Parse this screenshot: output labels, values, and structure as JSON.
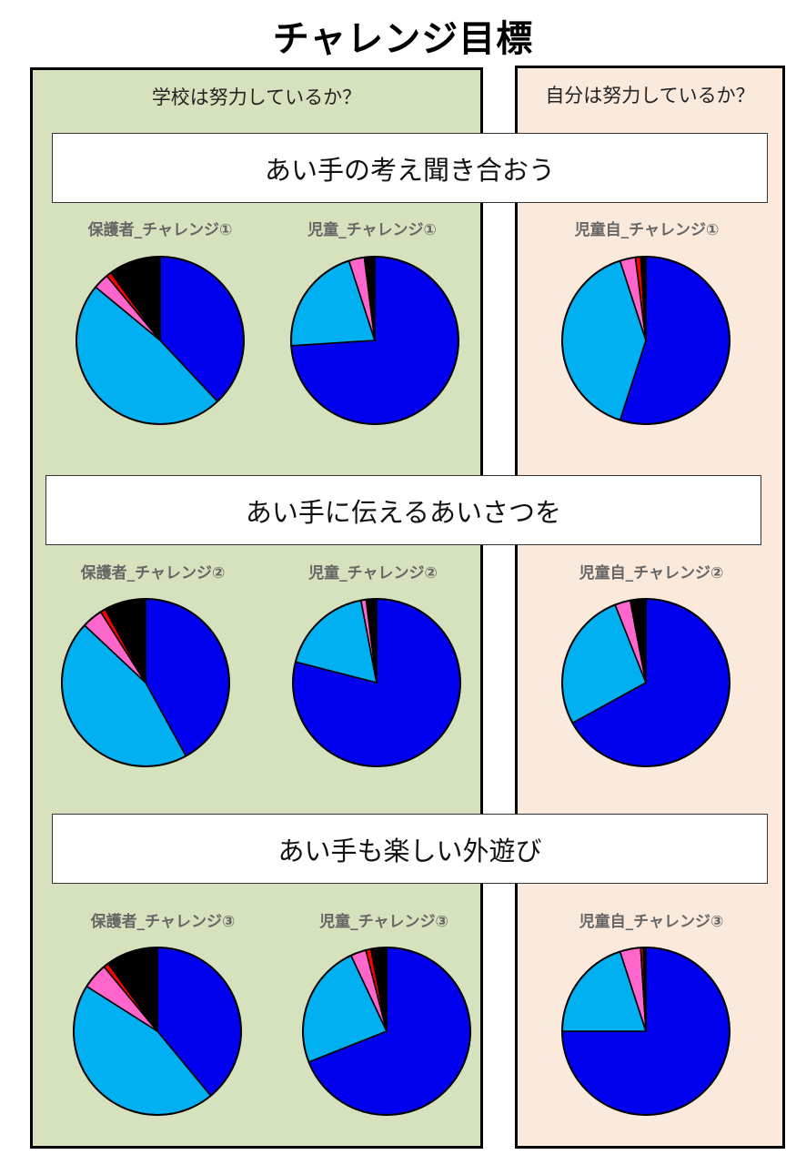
{
  "page_title": "チャレンジ目標",
  "left_header": "学校は努力しているか？",
  "right_header": "自分は努力しているか？",
  "goals": [
    "あい手の考え聞き合おう",
    "あい手に伝えるあいさつを",
    "あい手も楽しい外遊び"
  ],
  "colors": [
    "#0000ee",
    "#00b0f0",
    "#ff66cc",
    "#ff0000",
    "#000000"
  ],
  "chart_data": [
    {
      "type": "pie",
      "title": "保護者_チャレンジ①",
      "values": [
        38,
        48,
        3,
        1,
        10
      ]
    },
    {
      "type": "pie",
      "title": "児童_チャレンジ①",
      "values": [
        74,
        21,
        3,
        0,
        2
      ]
    },
    {
      "type": "pie",
      "title": "児童自_チャレンジ①",
      "values": [
        55,
        40,
        3,
        1,
        1
      ]
    },
    {
      "type": "pie",
      "title": "保護者_チャレンジ②",
      "values": [
        42,
        45,
        4,
        1,
        8
      ]
    },
    {
      "type": "pie",
      "title": "児童_チャレンジ②",
      "values": [
        79,
        18,
        1,
        0,
        2
      ]
    },
    {
      "type": "pie",
      "title": "児童自_チャレンジ②",
      "values": [
        67,
        27,
        3,
        0,
        3
      ]
    },
    {
      "type": "pie",
      "title": "保護者_チャレンジ③",
      "values": [
        39,
        45,
        5,
        1,
        10
      ]
    },
    {
      "type": "pie",
      "title": "児童_チャレンジ③",
      "values": [
        69,
        24,
        3,
        1,
        3
      ]
    },
    {
      "type": "pie",
      "title": "児童自_チャレンジ③",
      "values": [
        75,
        20,
        4,
        0.5,
        0.5
      ]
    }
  ]
}
